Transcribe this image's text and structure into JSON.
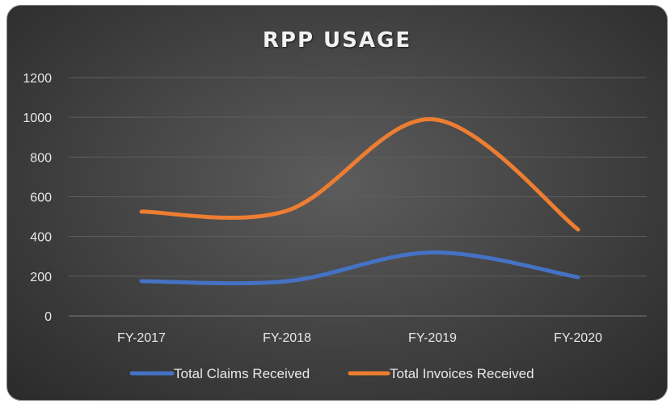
{
  "chart_data": {
    "type": "line",
    "title": "RPP USAGE",
    "xlabel": "",
    "ylabel": "",
    "categories": [
      "FY-2017",
      "FY-2018",
      "FY-2019",
      "FY-2020"
    ],
    "ylim": [
      0,
      1200
    ],
    "yticks": [
      0,
      200,
      400,
      600,
      800,
      1000,
      1200
    ],
    "grid": true,
    "smooth": true,
    "legend_position": "bottom",
    "series": [
      {
        "name": "Total Claims Received",
        "values": [
          175,
          175,
          320,
          195
        ],
        "color": "#4472C4"
      },
      {
        "name": "Total Invoices Received",
        "values": [
          525,
          530,
          990,
          435
        ],
        "color": "#ED7D31"
      }
    ]
  }
}
